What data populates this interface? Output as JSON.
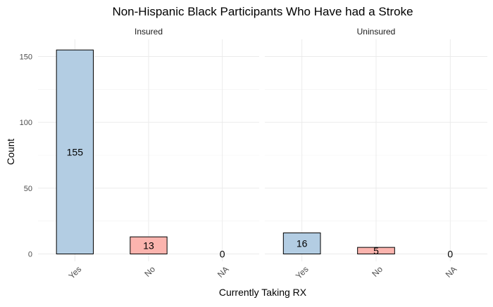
{
  "chart_data": {
    "type": "bar",
    "title": "Non-Hispanic Black Participants Who Have had a Stroke",
    "xlabel": "Currently Taking RX",
    "ylabel": "Count",
    "ylim": [
      0,
      160
    ],
    "yticks": [
      0,
      50,
      100,
      150
    ],
    "grid": true,
    "categories": [
      "Yes",
      "No",
      "NA"
    ],
    "colors": {
      "Yes": "#b3cde3",
      "No": "#fbb4ae",
      "NA": "#ccebc5"
    },
    "facets": [
      {
        "name": "Insured",
        "values": [
          155,
          13,
          0
        ]
      },
      {
        "name": "Uninsured",
        "values": [
          16,
          5,
          0
        ]
      }
    ]
  }
}
